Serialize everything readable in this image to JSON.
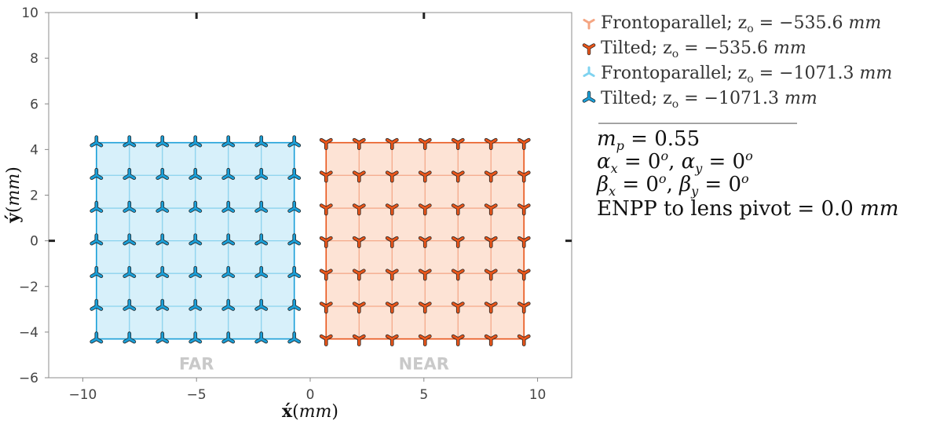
{
  "chart_data": {
    "type": "scatter",
    "title": "",
    "xlabel": "x́(mm)",
    "ylabel": "ý(mm)",
    "xlim": [
      -11.5,
      11.5
    ],
    "ylim": [
      -6,
      10
    ],
    "xticks": [
      -10,
      -5,
      0,
      5,
      10
    ],
    "yticks": [
      -6,
      -4,
      -2,
      0,
      2,
      4,
      6,
      8,
      10
    ],
    "xtick_labels": [
      "−10",
      "−5",
      "0",
      "5",
      "10"
    ],
    "ytick_labels": [
      "−6",
      "−4",
      "−2",
      "0",
      "2",
      "4",
      "6",
      "8",
      "10"
    ],
    "grid": false,
    "legend_position": "outside-right",
    "region_labels": [
      {
        "text": "FAR",
        "x": -5,
        "y": -5.4
      },
      {
        "text": "NEAR",
        "x": 5,
        "y": -5.4
      }
    ],
    "series": [
      {
        "name": "Frontoparallel; zₒ = −535.6 mm",
        "legend": {
          "name": "Frontoparallel",
          "sep": "; ",
          "z_prefix": "z",
          "z_sub": "o",
          "eq": " = ",
          "value": "−535.6",
          "unit": " mm"
        },
        "marker": "tri_down",
        "color": "#f4a582",
        "fill": "#fde0d0",
        "x": [
          0.7,
          2.15,
          3.6,
          5.05,
          6.5,
          7.95,
          9.4
        ],
        "y": [
          -4.3,
          -2.87,
          -1.43,
          0,
          1.43,
          2.87,
          4.3
        ]
      },
      {
        "name": "Tilted; zₒ = −535.6 mm",
        "legend": {
          "name": "Tilted",
          "sep": "; ",
          "z_prefix": "z",
          "z_sub": "o",
          "eq": " = ",
          "value": "−535.6",
          "unit": " mm"
        },
        "marker": "tri_down",
        "color": "#e8551a",
        "fill": "none",
        "x": [
          0.7,
          2.15,
          3.6,
          5.05,
          6.5,
          7.95,
          9.4
        ],
        "y": [
          -4.3,
          -2.87,
          -1.43,
          0,
          1.43,
          2.87,
          4.3
        ]
      },
      {
        "name": "Frontoparallel; zₒ = −1071.3 mm",
        "legend": {
          "name": "Frontoparallel",
          "sep": "; ",
          "z_prefix": "z",
          "z_sub": "o",
          "eq": " = ",
          "value": "−1071.3",
          "unit": " mm"
        },
        "marker": "tri_up",
        "color": "#7fd3f0",
        "fill": "#d3eefa",
        "x": [
          -9.4,
          -7.95,
          -6.5,
          -5.05,
          -3.6,
          -2.15,
          -0.7
        ],
        "y": [
          -4.3,
          -2.87,
          -1.43,
          0,
          1.43,
          2.87,
          4.3
        ]
      },
      {
        "name": "Tilted; zₒ = −1071.3 mm",
        "legend": {
          "name": "Tilted",
          "sep": "; ",
          "z_prefix": "z",
          "z_sub": "o",
          "eq": " = ",
          "value": "−1071.3",
          "unit": " mm"
        },
        "marker": "tri_up",
        "color": "#1a9fd8",
        "fill": "none",
        "x": [
          -9.4,
          -7.95,
          -6.5,
          -5.05,
          -3.6,
          -2.15,
          -0.7
        ],
        "y": [
          -4.3,
          -2.87,
          -1.43,
          0,
          1.43,
          2.87,
          4.3
        ]
      }
    ]
  },
  "parameters": {
    "separator": "_______________________",
    "mp": {
      "symbol": "m",
      "sub": "p",
      "eq": " = ",
      "value": "0.55"
    },
    "alpha": {
      "text": "αx = 0ᵒ, αy = 0ᵒ"
    },
    "beta": {
      "text": "βx = 0ᵒ, βy = 0ᵒ"
    },
    "enpp": {
      "label": "ENPP to lens pivot",
      "eq": " = ",
      "value": "0.0",
      "unit": " mm"
    }
  },
  "colors": {
    "axis": "#888888",
    "tick": "#222222",
    "grid_line_alpha": 0.35
  }
}
